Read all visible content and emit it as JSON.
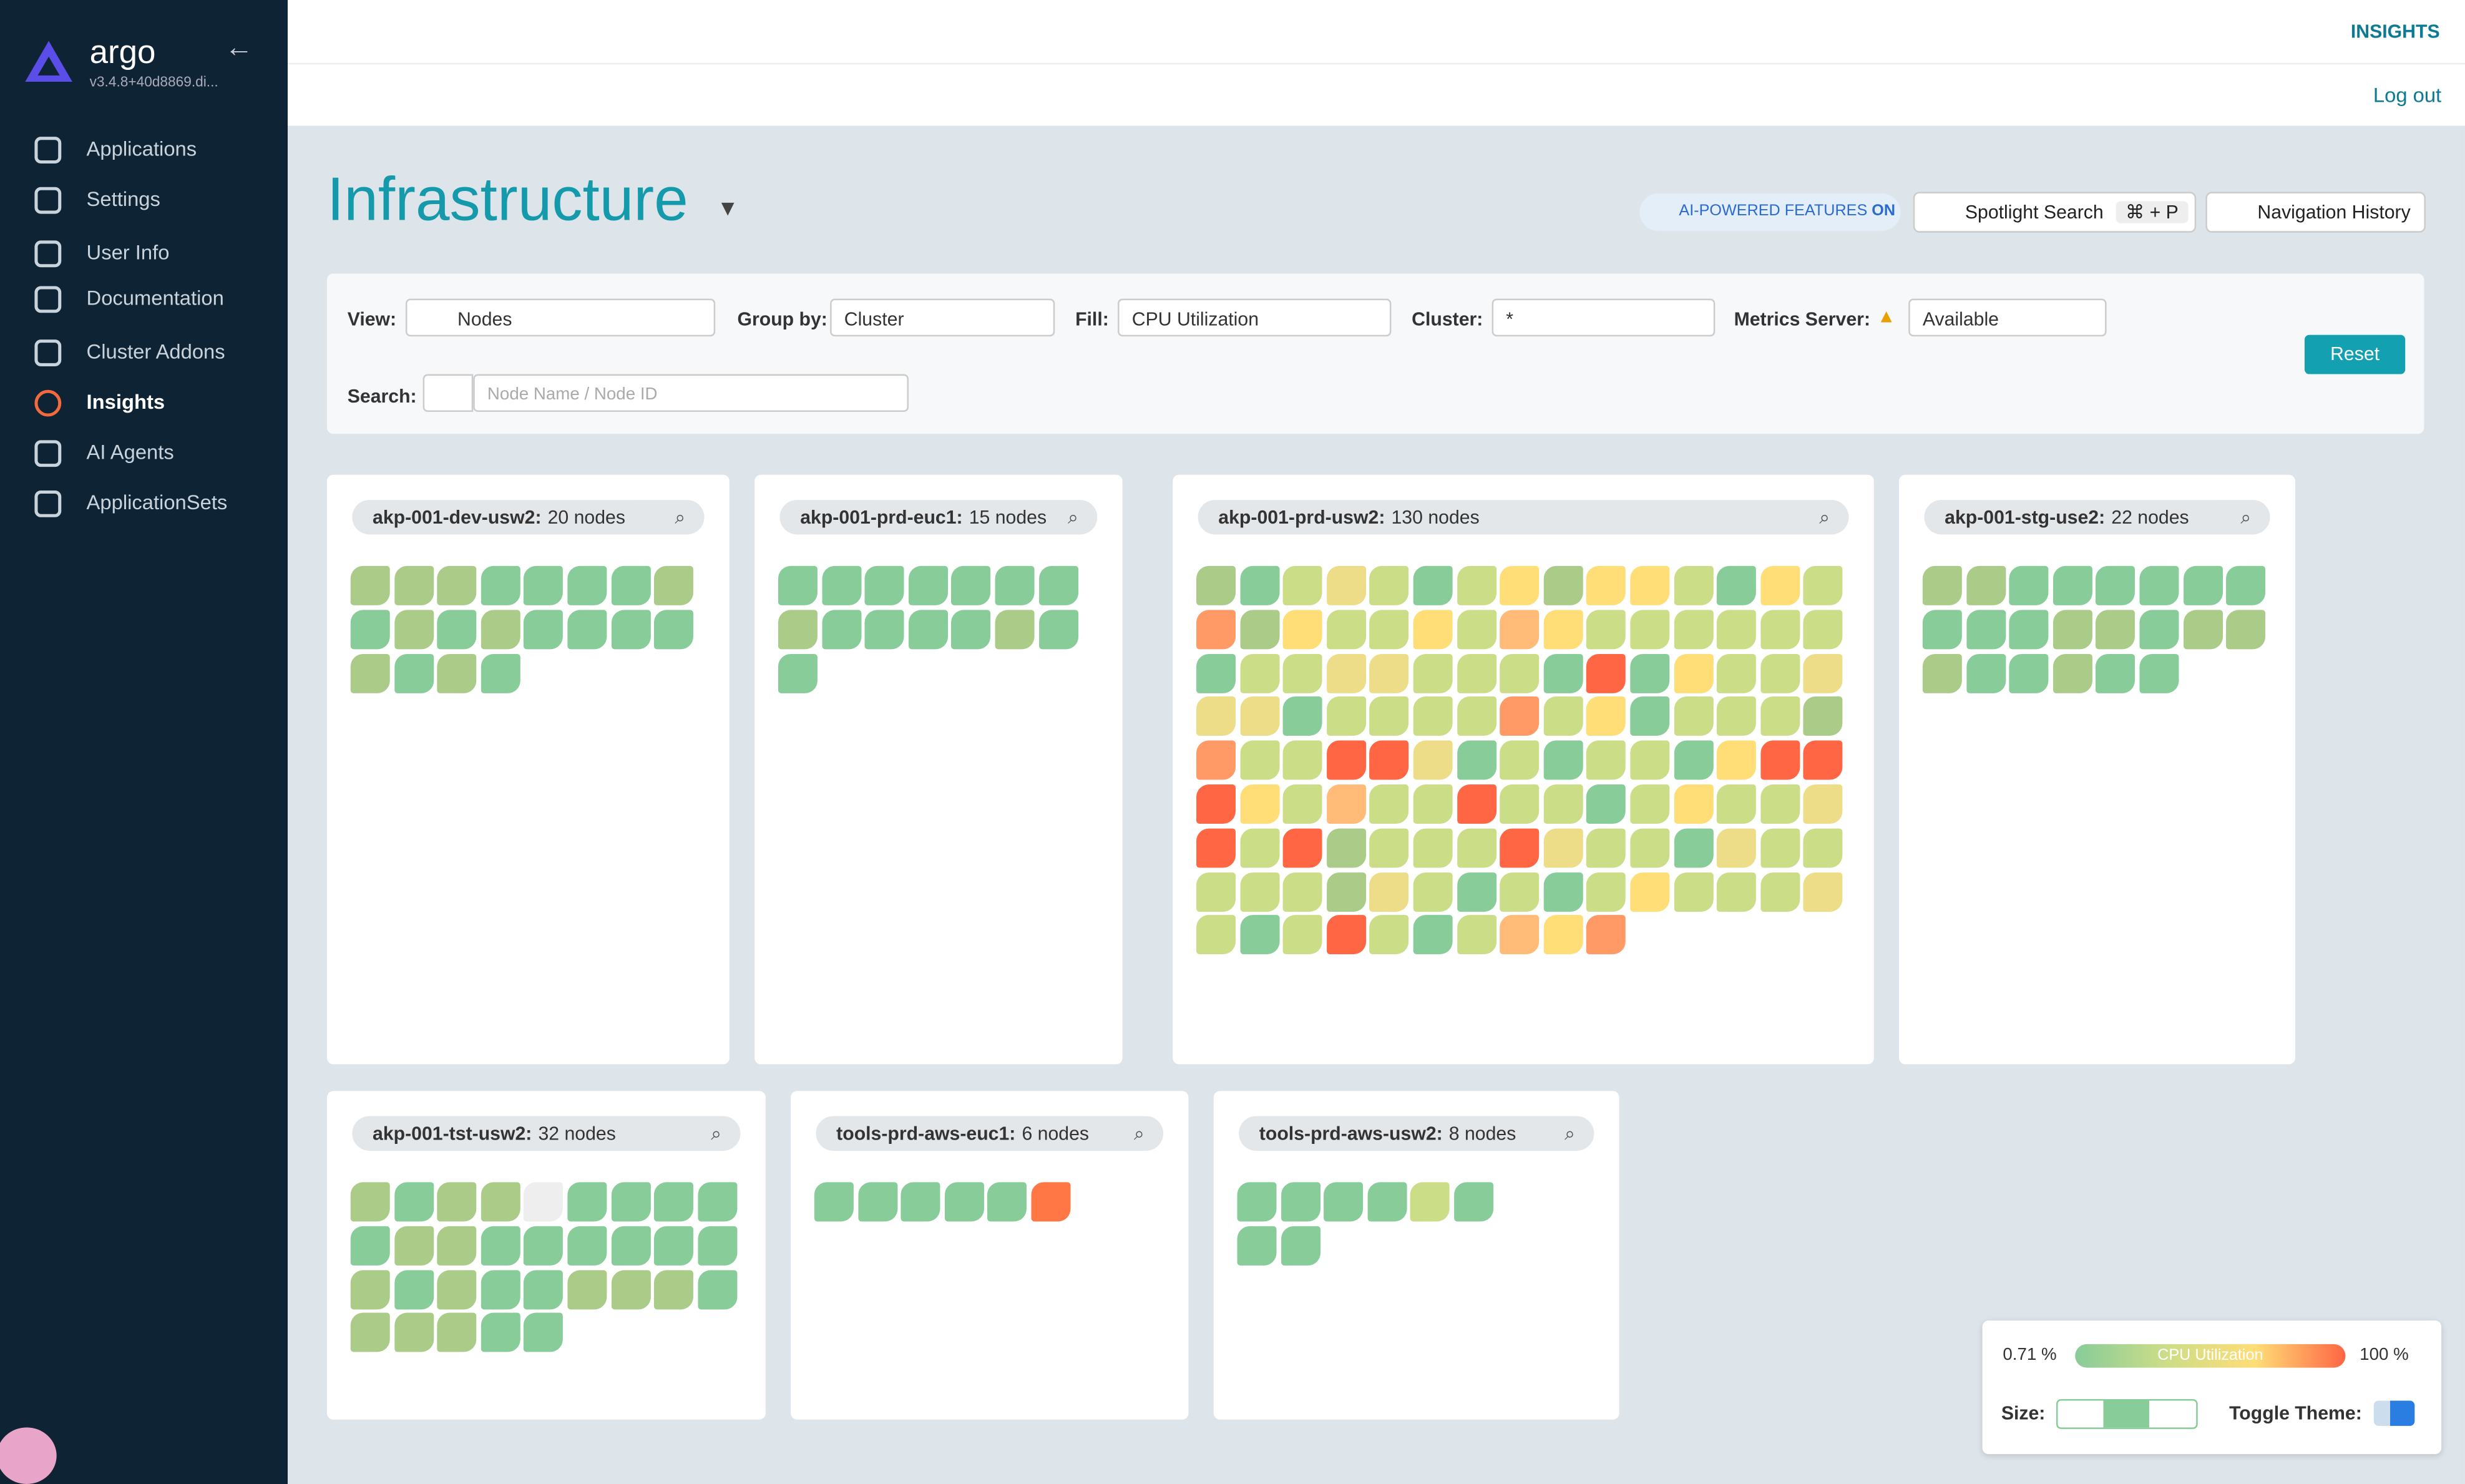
{
  "app": {
    "name": "argo",
    "version": "v3.4.8+40d8869.di..."
  },
  "sidebar": [
    "Applications",
    "Settings",
    "User Info",
    "Documentation",
    "Cluster Addons",
    "Insights",
    "AI Agents",
    "ApplicationSets"
  ],
  "topbar": {
    "section": "INSIGHTS",
    "logout": "Log out"
  },
  "page": {
    "title": "Infrastructure",
    "ai_badge": "AI-POWERED FEATURES",
    "ai_state": "ON",
    "spotlight": "Spotlight Search",
    "shortcut": "⌘ + P",
    "history": "Navigation History"
  },
  "filters": {
    "view_label": "View:",
    "view": "Nodes",
    "group_label": "Group by:",
    "group": "Cluster",
    "fill_label": "Fill:",
    "fill": "CPU Utilization",
    "cluster_label": "Cluster:",
    "cluster": "*",
    "metrics_label": "Metrics Server:",
    "metrics": "Available",
    "reset": "Reset",
    "search_label": "Search:",
    "search_placeholder": "Node Name / Node ID"
  },
  "clusters": [
    {
      "name": "akp-001-dev-usw2:",
      "count": "20 nodes",
      "nodes": [
        "#ac8",
        "#ac8",
        "#ac8",
        "#8c9",
        "#8c9",
        "#8c9",
        "#8c9",
        "#ac8",
        "#8c9",
        "#ac8",
        "#8c9",
        "#ac8",
        "#8c9",
        "#8c9",
        "#8c9",
        "#8c9",
        "#ac8",
        "#8c9",
        "#ac8",
        "#8c9"
      ]
    },
    {
      "name": "akp-001-prd-euc1:",
      "count": "15 nodes",
      "nodes": [
        "#8c9",
        "#8c9",
        "#8c9",
        "#8c9",
        "#8c9",
        "#8c9",
        "#8c9",
        "#ac8",
        "#8c9",
        "#8c9",
        "#8c9",
        "#8c9",
        "#ac8",
        "#8c9",
        "#8c9"
      ]
    },
    {
      "name": "akp-001-prd-usw2:",
      "count": "130 nodes",
      "nodes": [
        "#ac8",
        "#8c9",
        "#cd8",
        "#ed8",
        "#cd8",
        "#8c9",
        "#cd8",
        "#fd7",
        "#ac8",
        "#fd7",
        "#fd7",
        "#cd8",
        "#8c9",
        "#fd7",
        "#cd8",
        "#f96",
        "#ac8",
        "#fd7",
        "#cd8",
        "#cd8",
        "#fd7",
        "#cd8",
        "#fb7",
        "#fd7",
        "#cd8",
        "#cd8",
        "#cd8",
        "#cd8",
        "#cd8",
        "#cd8",
        "#8c9",
        "#cd8",
        "#cd8",
        "#ed8",
        "#ed8",
        "#cd8",
        "#cd8",
        "#cd8",
        "#8c9",
        "#f64",
        "#8c9",
        "#fd7",
        "#cd8",
        "#cd8",
        "#ed8",
        "#ed8",
        "#ed8",
        "#8c9",
        "#cd8",
        "#cd8",
        "#cd8",
        "#cd8",
        "#f96",
        "#cd8",
        "#fd7",
        "#8c9",
        "#cd8",
        "#cd8",
        "#cd8",
        "#ac8",
        "#f96",
        "#cd8",
        "#cd8",
        "#f64",
        "#f64",
        "#ed8",
        "#8c9",
        "#cd8",
        "#8c9",
        "#cd8",
        "#cd8",
        "#8c9",
        "#fd7",
        "#f64",
        "#f64",
        "#f64",
        "#fd7",
        "#cd8",
        "#fb7",
        "#cd8",
        "#cd8",
        "#f64",
        "#cd8",
        "#cd8",
        "#8c9",
        "#cd8",
        "#fd7",
        "#cd8",
        "#cd8",
        "#ed8",
        "#f64",
        "#cd8",
        "#f64",
        "#ac8",
        "#cd8",
        "#cd8",
        "#cd8",
        "#f64",
        "#ed8",
        "#cd8",
        "#cd8",
        "#8c9",
        "#ed8",
        "#cd8",
        "#cd8",
        "#cd8",
        "#cd8",
        "#cd8",
        "#ac8",
        "#ed8",
        "#cd8",
        "#8c9",
        "#cd8",
        "#8c9",
        "#cd8",
        "#fd7",
        "#cd8",
        "#cd8",
        "#cd8",
        "#ed8",
        "#cd8",
        "#8c9",
        "#cd8",
        "#f64",
        "#cd8",
        "#8c9",
        "#cd8",
        "#fb7",
        "#fd7",
        "#f96"
      ]
    },
    {
      "name": "akp-001-stg-use2:",
      "count": "22 nodes",
      "nodes": [
        "#ac8",
        "#ac8",
        "#8c9",
        "#8c9",
        "#8c9",
        "#8c9",
        "#8c9",
        "#8c9",
        "#8c9",
        "#8c9",
        "#8c9",
        "#ac8",
        "#ac8",
        "#8c9",
        "#ac8",
        "#ac8",
        "#ac8",
        "#8c9",
        "#8c9",
        "#ac8",
        "#8c9",
        "#8c9"
      ]
    },
    {
      "name": "akp-001-tst-usw2:",
      "count": "32 nodes",
      "nodes": [
        "#ac8",
        "#8c9",
        "#ac8",
        "#ac8",
        "#eee",
        "#8c9",
        "#8c9",
        "#8c9",
        "#8c9",
        "#8c9",
        "#ac8",
        "#ac8",
        "#8c9",
        "#8c9",
        "#8c9",
        "#8c9",
        "#8c9",
        "#8c9",
        "#ac8",
        "#8c9",
        "#ac8",
        "#8c9",
        "#8c9",
        "#ac8",
        "#ac8",
        "#ac8",
        "#8c9",
        "#ac8",
        "#ac8",
        "#ac8",
        "#8c9",
        "#8c9"
      ]
    },
    {
      "name": "tools-prd-aws-euc1:",
      "count": "6 nodes",
      "nodes": [
        "#8c9",
        "#8c9",
        "#8c9",
        "#8c9",
        "#8c9",
        "#f74"
      ]
    },
    {
      "name": "tools-prd-aws-usw2:",
      "count": "8 nodes",
      "nodes": [
        "#8c9",
        "#8c9",
        "#8c9",
        "#8c9",
        "#cd8",
        "#8c9",
        "#8c9",
        "#8c9"
      ]
    }
  ],
  "legend": {
    "min": "0.71 %",
    "max": "100 %",
    "metric": "CPU Utilization",
    "size_label": "Size:",
    "theme_label": "Toggle Theme:"
  }
}
